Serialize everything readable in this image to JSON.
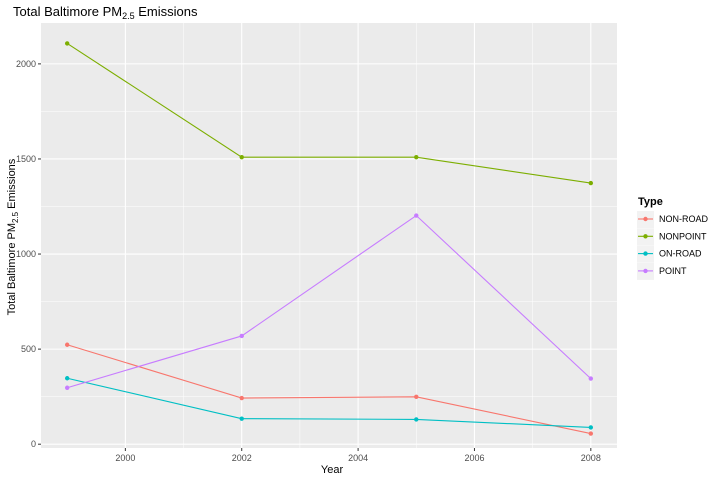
{
  "chart_data": {
    "type": "line",
    "title": {
      "main": "Total Baltimore  PM",
      "sub": "2.5",
      "suffix": " Emissions"
    },
    "xlabel": "Year",
    "ylabel": {
      "main": "Total Baltimore PM",
      "sub": "2.5",
      "suffix": " Emissions"
    },
    "x": [
      1999,
      2002,
      2005,
      2008
    ],
    "xlim": [
      1998.55,
      2008.45
    ],
    "ylim": [
      -20,
      2215
    ],
    "xticks": [
      2000,
      2002,
      2004,
      2006,
      2008
    ],
    "yticks": [
      0,
      500,
      1000,
      1500,
      2000
    ],
    "xtick_labels": [
      "2000",
      "2002",
      "2004",
      "2006",
      "2008"
    ],
    "ytick_labels": [
      "0",
      "500",
      "1000",
      "1500",
      "2000"
    ],
    "grid": true,
    "background": "#ebebeb",
    "legend_title": "Type",
    "legend_position": "right",
    "series": [
      {
        "name": "NON-ROAD",
        "color": "#F8766D",
        "values": [
          522.94,
          242.85,
          248.93,
          55.82
        ]
      },
      {
        "name": "NONPOINT",
        "color": "#7CAE00",
        "values": [
          2107.63,
          1509.5,
          1509.5,
          1373.21
        ]
      },
      {
        "name": "ON-ROAD",
        "color": "#00BFC4",
        "values": [
          346.82,
          134.31,
          130.43,
          88.28
        ]
      },
      {
        "name": "POINT",
        "color": "#C77CFF",
        "values": [
          296.8,
          569.26,
          1202.49,
          344.98
        ]
      }
    ]
  }
}
